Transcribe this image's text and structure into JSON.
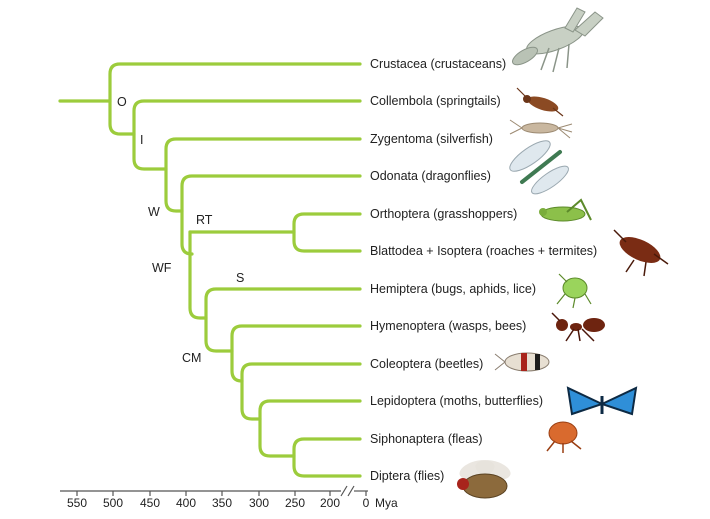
{
  "taxa": [
    {
      "label": "Crustacea (crustaceans)",
      "icon": "crayfish-icon"
    },
    {
      "label": "Collembola (springtails)",
      "icon": "springtail-icon"
    },
    {
      "label": "Zygentoma (silverfish)",
      "icon": "silverfish-icon"
    },
    {
      "label": "Odonata (dragonflies)",
      "icon": "dragonfly-icon"
    },
    {
      "label": "Orthoptera (grasshoppers)",
      "icon": "grasshopper-icon"
    },
    {
      "label": "Blattodea + Isoptera (roaches + termites)",
      "icon": "cockroach-icon"
    },
    {
      "label": "Hemiptera (bugs, aphids, lice)",
      "icon": "aphid-icon"
    },
    {
      "label": "Hymenoptera (wasps, bees)",
      "icon": "ant-icon"
    },
    {
      "label": "Coleoptera (beetles)",
      "icon": "beetle-icon"
    },
    {
      "label": "Lepidoptera (moths, butterflies)",
      "icon": "butterfly-icon"
    },
    {
      "label": "Siphonaptera (fleas)",
      "icon": "flea-icon"
    },
    {
      "label": "Diptera (flies)",
      "icon": "fly-icon"
    }
  ],
  "node_labels": [
    "O",
    "I",
    "W",
    "WF",
    "RT",
    "S",
    "CM"
  ],
  "axis": {
    "ticks": [
      "550",
      "500",
      "450",
      "400",
      "350",
      "300",
      "250",
      "200",
      "0"
    ],
    "unit": "Mya"
  },
  "colors": {
    "branch": "#9ccc3c",
    "axis": "#555555"
  }
}
